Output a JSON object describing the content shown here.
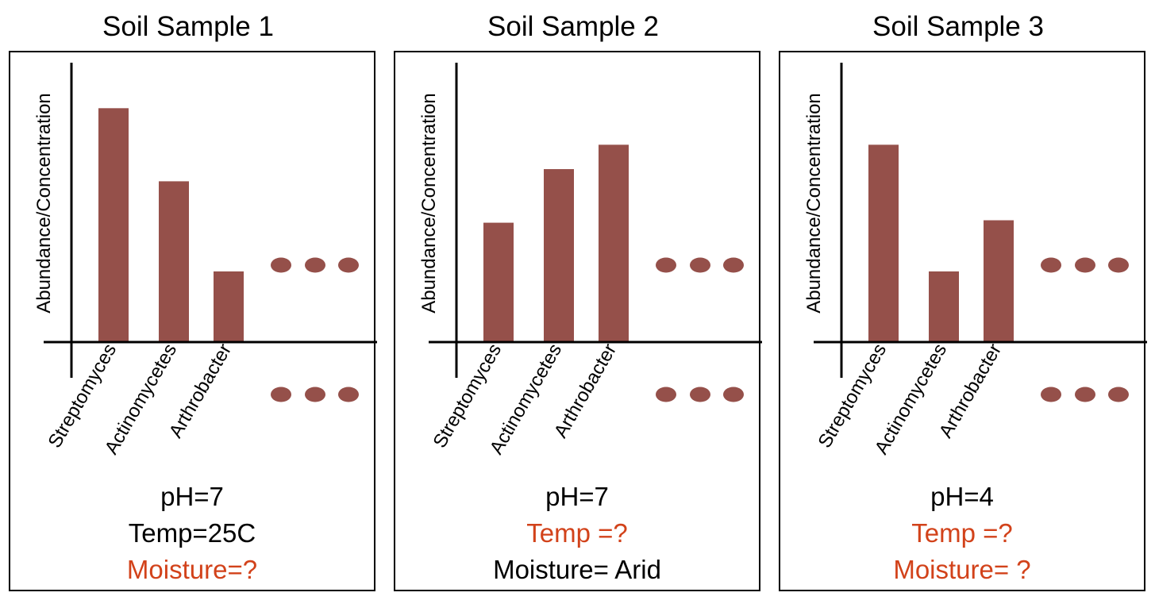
{
  "colors": {
    "bar": "#95504a",
    "axis": "#000000",
    "unknown": "#d2421a",
    "known": "#000000"
  },
  "chart_data": [
    {
      "type": "bar",
      "title": "Soil Sample 1",
      "ylabel": "Abundance/Concentration",
      "categories": [
        "Streptomyces",
        "Actinomycetes",
        "Arthrobacter"
      ],
      "values": [
        9.6,
        6.6,
        2.9
      ],
      "ylim": [
        0,
        11.5
      ],
      "continuation": "...",
      "conditions": [
        {
          "text": "pH=7",
          "unknown": false
        },
        {
          "text": "Temp=25C",
          "unknown": false
        },
        {
          "text": "Moisture=?",
          "unknown": true
        }
      ]
    },
    {
      "type": "bar",
      "title": "Soil Sample 2",
      "ylabel": "Abundance/Concentration",
      "categories": [
        "Streptomyces",
        "Actinomycetes",
        "Arthrobacter"
      ],
      "values": [
        4.9,
        7.1,
        8.1
      ],
      "ylim": [
        0,
        11.5
      ],
      "continuation": "...",
      "conditions": [
        {
          "text": "pH=7",
          "unknown": false
        },
        {
          "text": "Temp =?",
          "unknown": true
        },
        {
          "text": "Moisture= Arid",
          "unknown": false
        }
      ]
    },
    {
      "type": "bar",
      "title": "Soil Sample 3",
      "ylabel": "Abundance/Concentration",
      "categories": [
        "Streptomyces",
        "Actinomycetes",
        "Arthrobacter"
      ],
      "values": [
        8.1,
        2.9,
        5.0
      ],
      "ylim": [
        0,
        11.5
      ],
      "continuation": "...",
      "conditions": [
        {
          "text": "pH=4",
          "unknown": false
        },
        {
          "text": "Temp =?",
          "unknown": true
        },
        {
          "text": "Moisture= ?",
          "unknown": true
        }
      ]
    }
  ]
}
